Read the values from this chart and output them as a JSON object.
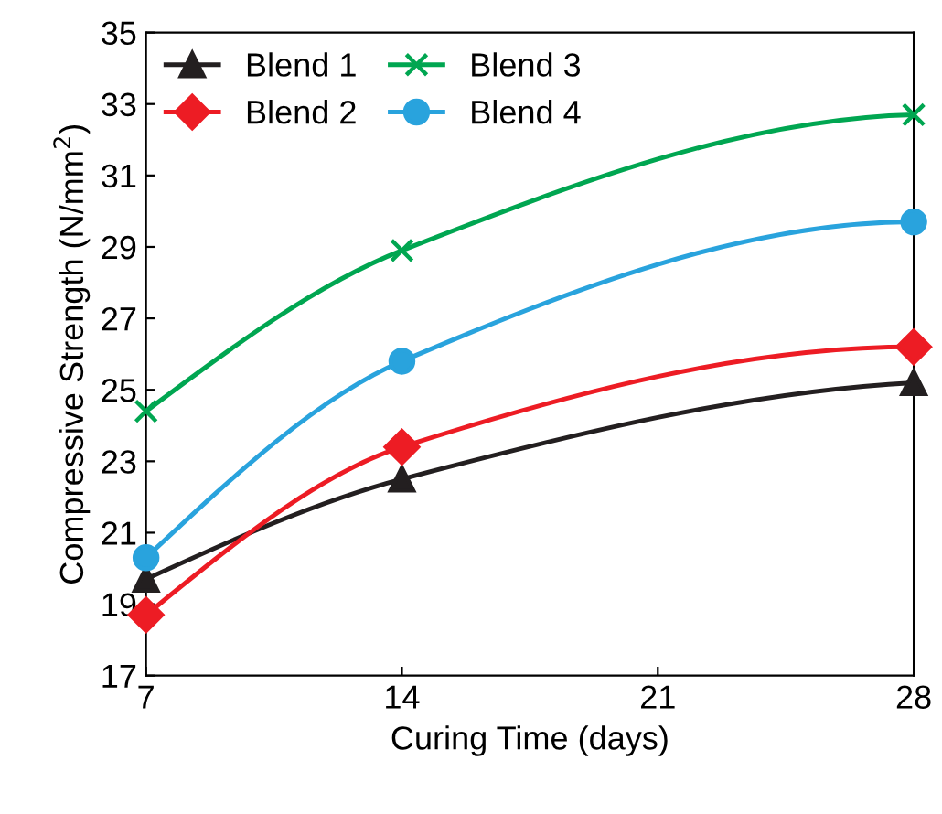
{
  "chart_data": {
    "type": "line",
    "xlabel": "Curing Time (days)",
    "ylabel": "Compressive Strength (N/mm$^{2}$)",
    "x": [
      7,
      14,
      28
    ],
    "xlim": [
      7,
      28
    ],
    "xticks": [
      7,
      14,
      21,
      28
    ],
    "ylim": [
      17,
      35
    ],
    "yticks": [
      17,
      19,
      21,
      23,
      25,
      27,
      29,
      31,
      33,
      35
    ],
    "grid": false,
    "legend": "top left",
    "line_style": "solid",
    "series": [
      {
        "name": "Blend 1",
        "color": "#231f20",
        "marker": "triangle",
        "values": [
          19.7,
          22.5,
          25.2
        ]
      },
      {
        "name": "Blend 2",
        "color": "#ed1c24",
        "marker": "diamond",
        "values": [
          18.7,
          23.4,
          26.2
        ]
      },
      {
        "name": "Blend 3",
        "color": "#00a651",
        "marker": "cross",
        "values": [
          24.4,
          28.9,
          32.7
        ]
      },
      {
        "name": "Blend 4",
        "color": "#29a3dd",
        "marker": "circle",
        "values": [
          20.3,
          25.8,
          29.7
        ]
      }
    ]
  }
}
